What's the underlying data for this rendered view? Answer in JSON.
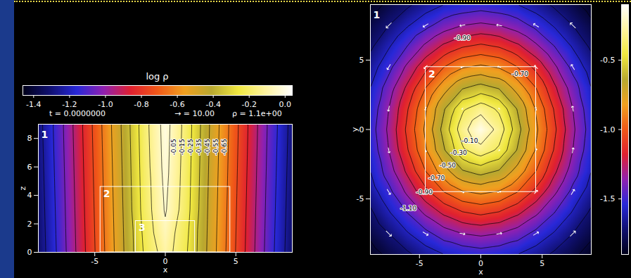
{
  "chart_data": [
    {
      "type": "heatmap",
      "panel_label": "1",
      "xlabel": "x",
      "ylabel": "z",
      "xlim": [
        -9,
        9
      ],
      "ylim": [
        0,
        9
      ],
      "xticks": [
        -5,
        0,
        5
      ],
      "yticks": [
        0,
        2,
        4,
        6,
        8
      ],
      "grid_x": [
        -9,
        -7.5,
        -6,
        -4.5,
        -3,
        -1.5,
        0,
        1.5,
        3,
        4.5,
        6,
        7.5,
        9
      ],
      "grid_y": [
        0,
        3,
        6,
        9
      ],
      "cells": [
        [
          -1.32,
          -1.12,
          -0.9,
          -0.68,
          -0.46,
          -0.24,
          -0.1,
          -0.24,
          -0.46,
          -0.68,
          -0.9,
          -1.12,
          -1.32
        ],
        [
          -1.31,
          -1.11,
          -0.89,
          -0.67,
          -0.45,
          -0.21,
          -0.04,
          -0.21,
          -0.45,
          -0.67,
          -0.89,
          -1.11,
          -1.31
        ],
        [
          -1.3,
          -1.1,
          -0.88,
          -0.66,
          -0.44,
          -0.2,
          -0.02,
          -0.2,
          -0.44,
          -0.66,
          -0.88,
          -1.1,
          -1.3
        ],
        [
          -1.29,
          -1.09,
          -0.87,
          -0.65,
          -0.43,
          -0.19,
          -0.01,
          -0.19,
          -0.43,
          -0.65,
          -0.87,
          -1.09,
          -1.29
        ]
      ],
      "contour_levels": [
        -0.05,
        -0.15,
        -0.25,
        -0.35,
        -0.45,
        -0.55,
        -0.65,
        -0.75,
        -0.85,
        -0.95,
        -1.05,
        -1.15,
        -1.25
      ],
      "contour_labels": [
        {
          "label": "-0.05",
          "x": 0.6,
          "y": 7.4
        },
        {
          "label": "-0.15",
          "x": 1.2,
          "y": 7.4
        },
        {
          "label": "-0.25",
          "x": 1.8,
          "y": 7.4
        },
        {
          "label": "-0.35",
          "x": 2.4,
          "y": 7.4
        },
        {
          "label": "-0.45",
          "x": 3.0,
          "y": 7.4
        },
        {
          "label": "-0.55",
          "x": 3.6,
          "y": 7.4
        },
        {
          "label": "-0.65",
          "x": 4.2,
          "y": 7.4
        }
      ],
      "boxes": [
        {
          "label": "2",
          "x": [
            -4.6,
            4.6
          ],
          "y": [
            0,
            4.6
          ]
        },
        {
          "label": "3",
          "x": [
            -2.1,
            2.1
          ],
          "y": [
            0,
            2.2
          ]
        }
      ]
    },
    {
      "type": "heatmap",
      "panel_label": "1",
      "xlabel": "x",
      "ylabel": "y",
      "xlim": [
        -9,
        9
      ],
      "ylim": [
        -9,
        9
      ],
      "xticks": [
        -5,
        0,
        5
      ],
      "yticks": [
        -5,
        0,
        5
      ],
      "grid_x": [
        -9,
        -7.5,
        -6,
        -4.5,
        -3,
        -1.5,
        0,
        1.5,
        3,
        4.5,
        6,
        7.5,
        9
      ],
      "grid_y": [
        -9,
        -7.5,
        -6,
        -4.5,
        -3,
        -1.5,
        0,
        1.5,
        3,
        4.5,
        6,
        7.5,
        9
      ],
      "cells": [
        [
          -1.44,
          -1.38,
          -1.32,
          -1.25,
          -1.2,
          -1.17,
          -1.15,
          -1.17,
          -1.2,
          -1.25,
          -1.32,
          -1.38,
          -1.44
        ],
        [
          -1.38,
          -1.3,
          -1.21,
          -1.13,
          -1.05,
          -1.0,
          -0.98,
          -1.0,
          -1.05,
          -1.13,
          -1.21,
          -1.3,
          -1.38
        ],
        [
          -1.32,
          -1.21,
          -1.1,
          -0.98,
          -0.88,
          -0.81,
          -0.78,
          -0.81,
          -0.88,
          -0.98,
          -1.1,
          -1.21,
          -1.32
        ],
        [
          -1.25,
          -1.13,
          -0.98,
          -0.83,
          -0.7,
          -0.61,
          -0.58,
          -0.61,
          -0.7,
          -0.83,
          -0.98,
          -1.13,
          -1.25
        ],
        [
          -1.2,
          -1.05,
          -0.88,
          -0.7,
          -0.54,
          -0.41,
          -0.36,
          -0.41,
          -0.54,
          -0.7,
          -0.88,
          -1.05,
          -1.2
        ],
        [
          -1.17,
          -1.0,
          -0.81,
          -0.61,
          -0.41,
          -0.22,
          -0.14,
          -0.22,
          -0.41,
          -0.61,
          -0.81,
          -1.0,
          -1.17
        ],
        [
          -1.15,
          -0.98,
          -0.78,
          -0.58,
          -0.36,
          -0.14,
          0,
          -0.14,
          -0.36,
          -0.58,
          -0.78,
          -0.98,
          -1.15
        ],
        [
          -1.17,
          -1.0,
          -0.81,
          -0.61,
          -0.41,
          -0.22,
          -0.14,
          -0.22,
          -0.41,
          -0.61,
          -0.81,
          -1.0,
          -1.17
        ],
        [
          -1.2,
          -1.05,
          -0.88,
          -0.7,
          -0.54,
          -0.41,
          -0.36,
          -0.41,
          -0.54,
          -0.7,
          -0.88,
          -1.05,
          -1.2
        ],
        [
          -1.25,
          -1.13,
          -0.98,
          -0.83,
          -0.7,
          -0.61,
          -0.58,
          -0.61,
          -0.7,
          -0.83,
          -0.98,
          -1.13,
          -1.25
        ],
        [
          -1.32,
          -1.21,
          -1.1,
          -0.98,
          -0.88,
          -0.81,
          -0.78,
          -0.81,
          -0.88,
          -0.98,
          -1.1,
          -1.21,
          -1.32
        ],
        [
          -1.38,
          -1.3,
          -1.21,
          -1.13,
          -1.05,
          -1.0,
          -0.98,
          -1.0,
          -1.05,
          -1.13,
          -1.21,
          -1.3,
          -1.38
        ],
        [
          -1.44,
          -1.38,
          -1.32,
          -1.25,
          -1.2,
          -1.17,
          -1.15,
          -1.17,
          -1.2,
          -1.25,
          -1.32,
          -1.38,
          -1.44
        ]
      ],
      "contour_levels": [
        -0.1,
        -0.2,
        -0.3,
        -0.4,
        -0.5,
        -0.6,
        -0.7,
        -0.8,
        -0.9,
        -1.0,
        -1.1,
        -1.2,
        -1.3,
        -1.4
      ],
      "contour_labels": [
        {
          "label": "-0.10",
          "x": -0.9,
          "y": -0.8
        },
        {
          "label": "-0.30",
          "x": -1.8,
          "y": -1.7
        },
        {
          "label": "-0.50",
          "x": -2.7,
          "y": -2.6
        },
        {
          "label": "-0.70",
          "x": -3.6,
          "y": -3.5
        },
        {
          "label": "-0.90",
          "x": -4.6,
          "y": -4.5
        },
        {
          "label": "-1.10",
          "x": -5.9,
          "y": -5.7
        },
        {
          "label": "-0.90",
          "x": -1.5,
          "y": 6.6
        },
        {
          "label": "-0.70",
          "x": 3.2,
          "y": 4.0
        }
      ],
      "boxes": [
        {
          "label": "2",
          "x": [
            -4.5,
            4.5
          ],
          "y": [
            -4.5,
            4.5
          ]
        }
      ],
      "vectors": {
        "x": [
          -7.5,
          -4.5,
          -1.5,
          1.5,
          4.5,
          7.5
        ],
        "y": [
          -7.5,
          -4.5,
          -1.5,
          1.5,
          4.5,
          7.5
        ],
        "vx": [
          [
            4.5,
            4.5,
            4.5,
            4.5,
            4.5,
            4.5
          ],
          [
            2.7,
            2.7,
            2.7,
            2.7,
            2.7,
            2.7
          ],
          [
            0.9,
            0.9,
            0.9,
            0.9,
            0.9,
            0.9
          ],
          [
            -0.9,
            -0.9,
            -0.9,
            -0.9,
            -0.9,
            -0.9
          ],
          [
            -2.7,
            -2.7,
            -2.7,
            -2.7,
            -2.7,
            -2.7
          ],
          [
            -4.5,
            -4.5,
            -4.5,
            -4.5,
            -4.5,
            -4.5
          ]
        ],
        "vy": [
          [
            -4.5,
            -2.7,
            -0.9,
            0.9,
            2.7,
            4.5
          ],
          [
            -4.5,
            -2.7,
            -0.9,
            0.9,
            2.7,
            4.5
          ],
          [
            -4.5,
            -2.7,
            -0.9,
            0.9,
            2.7,
            4.5
          ],
          [
            -4.5,
            -2.7,
            -0.9,
            0.9,
            2.7,
            4.5
          ],
          [
            -4.5,
            -2.7,
            -0.9,
            0.9,
            2.7,
            4.5
          ],
          [
            -4.5,
            -2.7,
            -0.9,
            0.9,
            2.7,
            4.5
          ]
        ]
      }
    }
  ],
  "colorbar": {
    "title": "log ρ",
    "range": [
      -1.46,
      0.04
    ],
    "ticks": [
      -1.4,
      -1.2,
      {
        "value": -1.0,
        "label": "-1.0"
      },
      -0.8,
      -0.6,
      -0.4,
      -0.2,
      {
        "value": 0,
        "label": "0.0"
      }
    ]
  },
  "right_colorbar": {
    "range": [
      -1.9,
      -0.1
    ],
    "ticks": [
      {
        "value": -0.5,
        "label": "-0.5"
      },
      {
        "value": -1.0,
        "label": "-1.0"
      },
      {
        "value": -1.5,
        "label": "-1.5"
      }
    ]
  },
  "info": {
    "time": "t = 0.0000000",
    "vector_scale": {
      "label": "→ = 10.00",
      "value": 10
    },
    "max": "ρ = 1.1e+00"
  }
}
